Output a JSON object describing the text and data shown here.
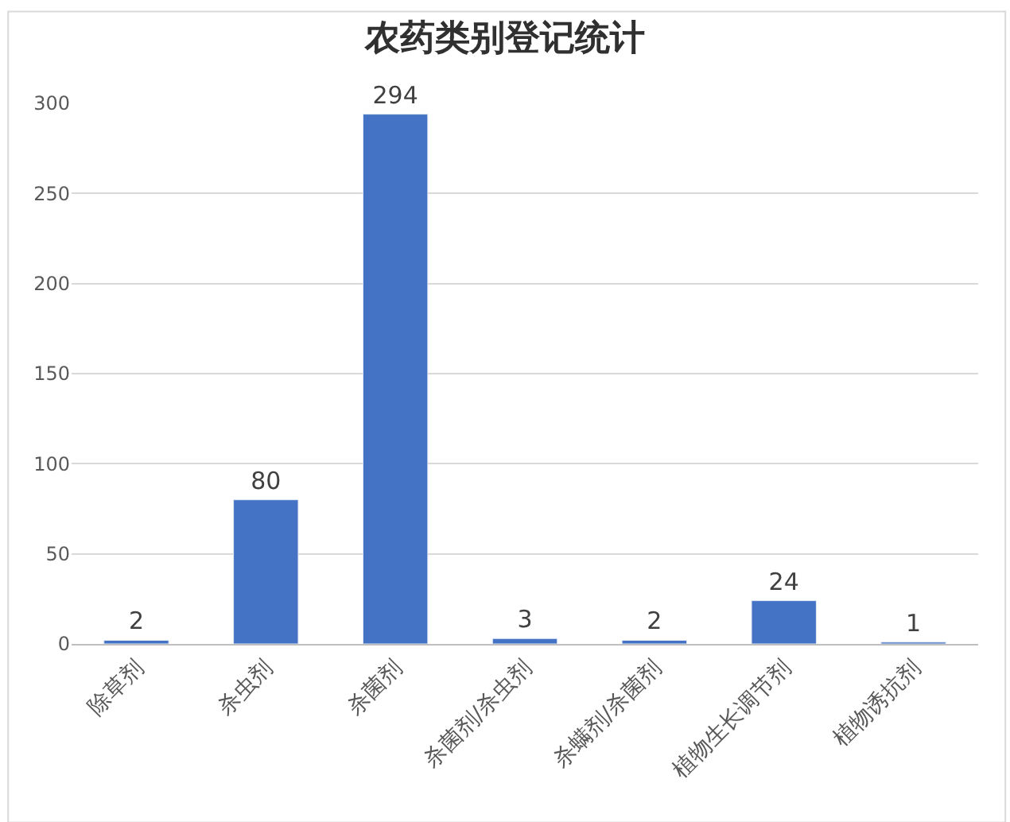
{
  "chart_data": {
    "type": "bar",
    "title": "农药类别登记统计",
    "categories": [
      "除草剂",
      "杀虫剂",
      "杀菌剂",
      "杀菌剂/杀虫剂",
      "杀螨剂/杀菌剂",
      "植物生长调节剂",
      "植物诱抗剂"
    ],
    "values": [
      2,
      80,
      294,
      3,
      2,
      24,
      1
    ],
    "color": "#4472c4",
    "ylim": [
      0,
      300
    ],
    "yticks": [
      0,
      50,
      100,
      150,
      200,
      250,
      300
    ],
    "grid": "y",
    "data_labels": true,
    "legend": false
  }
}
